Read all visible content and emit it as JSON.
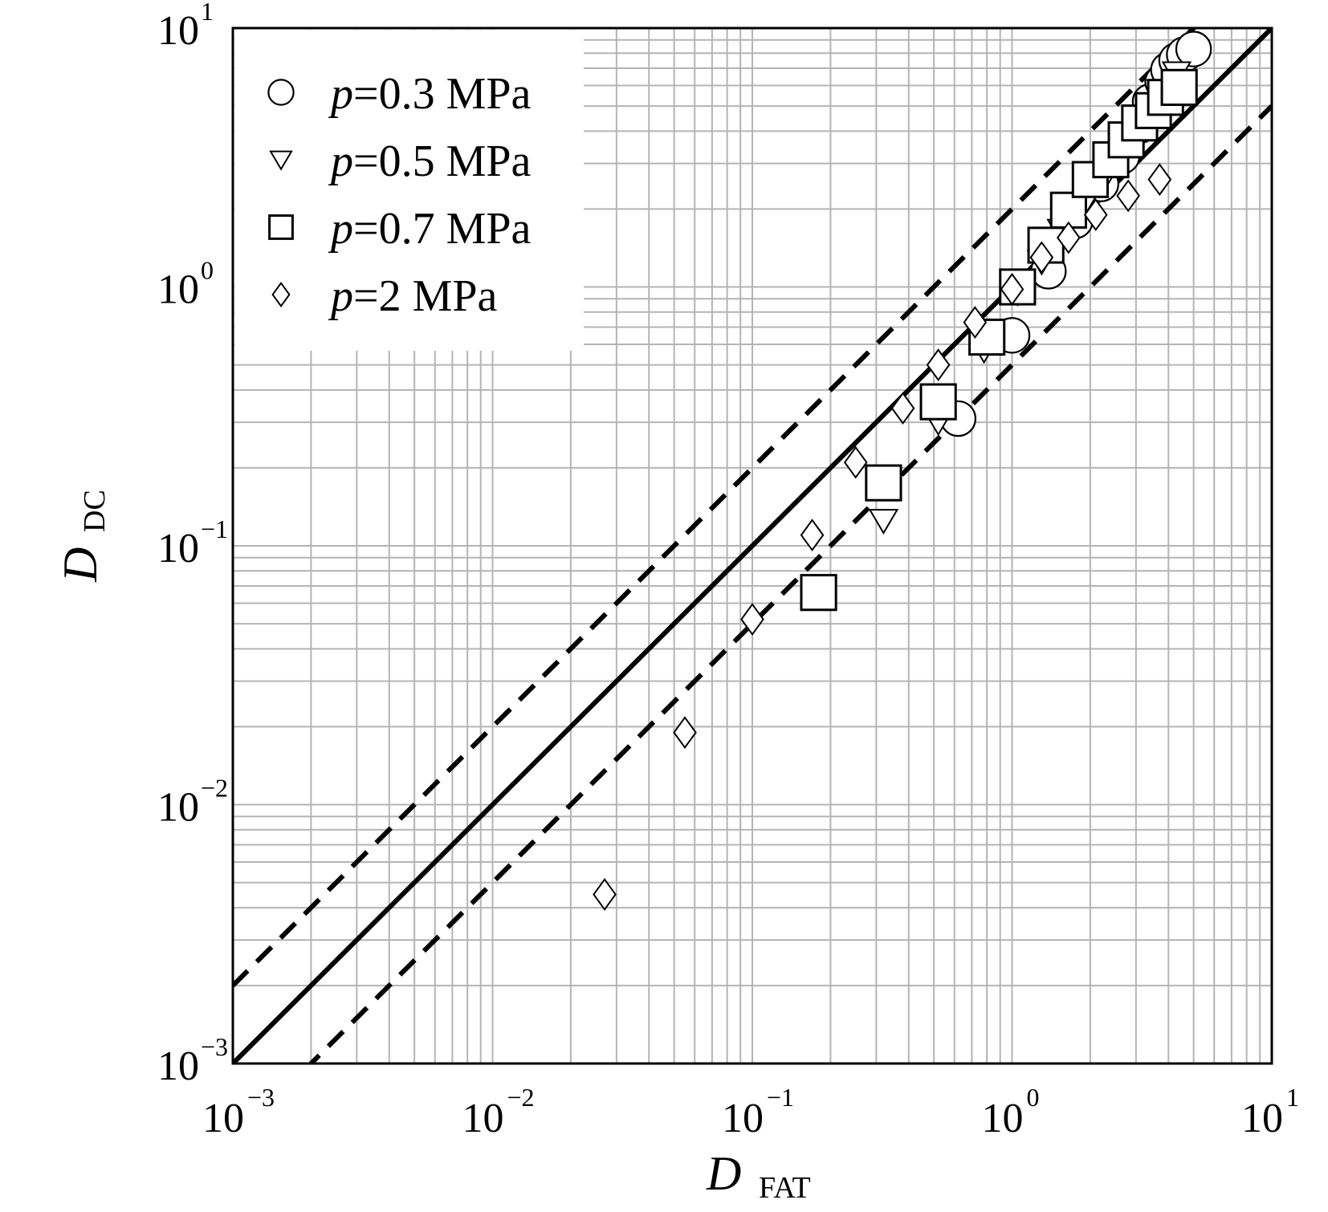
{
  "chart_data": {
    "type": "scatter",
    "x_scale": "log",
    "y_scale": "log",
    "xlim": [
      0.001,
      10
    ],
    "ylim": [
      0.001,
      10
    ],
    "x_ticks": [
      {
        "base": "10",
        "exp": "−3"
      },
      {
        "base": "10",
        "exp": "−2"
      },
      {
        "base": "10",
        "exp": "−1"
      },
      {
        "base": "10",
        "exp": "0"
      },
      {
        "base": "10",
        "exp": "1"
      }
    ],
    "y_ticks": [
      {
        "base": "10",
        "exp": "−3"
      },
      {
        "base": "10",
        "exp": "−2"
      },
      {
        "base": "10",
        "exp": "−1"
      },
      {
        "base": "10",
        "exp": "0"
      },
      {
        "base": "10",
        "exp": "1"
      }
    ],
    "xlabel": {
      "main": "D",
      "sub": "FAT"
    },
    "ylabel": {
      "main": "D",
      "sub": "DC"
    },
    "grid": true,
    "legend_position": "top-left",
    "reference_lines": [
      {
        "style": "solid",
        "factor": 1
      },
      {
        "style": "dashed",
        "factor": 2
      },
      {
        "style": "dashed",
        "factor": 0.5
      }
    ],
    "series": [
      {
        "name": "p=0.3 MPa",
        "legend_var": "p",
        "legend_value": "=0.3 MPa",
        "marker": "circle",
        "points": [
          [
            0.62,
            0.31
          ],
          [
            1.0,
            0.65
          ],
          [
            1.38,
            1.15
          ],
          [
            1.75,
            1.8
          ],
          [
            2.2,
            2.5
          ],
          [
            2.65,
            3.2
          ],
          [
            3.1,
            4.2
          ],
          [
            3.4,
            5.2
          ],
          [
            3.8,
            6.2
          ],
          [
            4.0,
            6.9
          ],
          [
            4.3,
            7.5
          ],
          [
            4.6,
            7.9
          ],
          [
            5.0,
            8.3
          ]
        ]
      },
      {
        "name": "p=0.5 MPa",
        "legend_var": "p",
        "legend_value": "=0.5 MPa",
        "marker": "triangle-down",
        "points": [
          [
            0.32,
            0.125
          ],
          [
            0.52,
            0.3
          ],
          [
            0.78,
            0.57
          ],
          [
            1.05,
            0.95
          ],
          [
            1.3,
            1.25
          ],
          [
            1.55,
            1.65
          ],
          [
            1.9,
            2.1
          ],
          [
            2.3,
            2.7
          ],
          [
            2.75,
            3.5
          ],
          [
            3.2,
            4.5
          ],
          [
            3.75,
            5.7
          ],
          [
            4.3,
            6.7
          ]
        ]
      },
      {
        "name": "p=0.7 MPa",
        "legend_var": "p",
        "legend_value": "=0.7 MPa",
        "marker": "square",
        "points": [
          [
            0.18,
            0.066
          ],
          [
            0.32,
            0.175
          ],
          [
            0.52,
            0.36
          ],
          [
            0.8,
            0.64
          ],
          [
            1.05,
            1.0
          ],
          [
            1.35,
            1.45
          ],
          [
            1.65,
            1.98
          ],
          [
            2.0,
            2.6
          ],
          [
            2.4,
            3.1
          ],
          [
            2.75,
            3.7
          ],
          [
            3.1,
            4.3
          ],
          [
            3.5,
            4.8
          ],
          [
            3.9,
            5.4
          ],
          [
            4.4,
            5.9
          ]
        ]
      },
      {
        "name": "p=2 MPa",
        "legend_var": "p",
        "legend_value": "=2 MPa",
        "marker": "diamond",
        "points": [
          [
            0.027,
            0.0045
          ],
          [
            0.055,
            0.019
          ],
          [
            0.1,
            0.052
          ],
          [
            0.17,
            0.11
          ],
          [
            0.25,
            0.21
          ],
          [
            0.38,
            0.34
          ],
          [
            0.52,
            0.5
          ],
          [
            0.72,
            0.73
          ],
          [
            1.0,
            0.98
          ],
          [
            1.3,
            1.3
          ],
          [
            1.65,
            1.55
          ],
          [
            2.1,
            1.9
          ],
          [
            2.8,
            2.25
          ],
          [
            3.7,
            2.6
          ]
        ]
      }
    ]
  }
}
